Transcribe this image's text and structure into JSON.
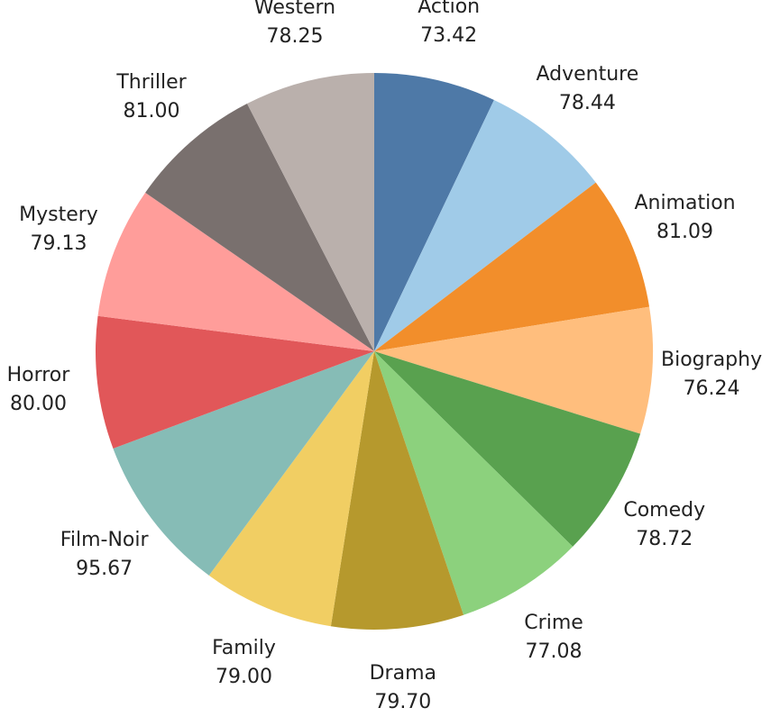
{
  "chart_data": {
    "type": "pie",
    "title": "",
    "start_angle_deg": 0,
    "direction": "clockwise",
    "slices": [
      {
        "label": "Action",
        "value": 73.42,
        "value_text": "73.42",
        "color": "#4e79a7"
      },
      {
        "label": "Adventure",
        "value": 78.44,
        "value_text": "78.44",
        "color": "#a0cbe8"
      },
      {
        "label": "Animation",
        "value": 81.09,
        "value_text": "81.09",
        "color": "#f28e2b"
      },
      {
        "label": "Biography",
        "value": 76.24,
        "value_text": "76.24",
        "color": "#ffbe7d"
      },
      {
        "label": "Comedy",
        "value": 78.72,
        "value_text": "78.72",
        "color": "#59a14f"
      },
      {
        "label": "Crime",
        "value": 77.08,
        "value_text": "77.08",
        "color": "#8cd17d"
      },
      {
        "label": "Drama",
        "value": 79.7,
        "value_text": "79.70",
        "color": "#b6992d"
      },
      {
        "label": "Family",
        "value": 79.0,
        "value_text": "79.00",
        "color": "#f1ce63"
      },
      {
        "label": "Film-Noir",
        "value": 95.67,
        "value_text": "95.67",
        "color": "#86bcb6"
      },
      {
        "label": "Horror",
        "value": 80.0,
        "value_text": "80.00",
        "color": "#e15759"
      },
      {
        "label": "Mystery",
        "value": 79.13,
        "value_text": "79.13",
        "color": "#ff9d9a"
      },
      {
        "label": "Thriller",
        "value": 81.0,
        "value_text": "81.00",
        "color": "#79706e"
      },
      {
        "label": "Western",
        "value": 78.25,
        "value_text": "78.25",
        "color": "#bab0ac"
      }
    ]
  }
}
